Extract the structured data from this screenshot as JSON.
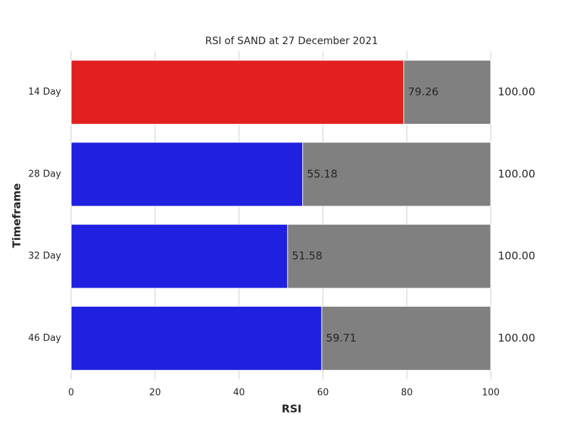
{
  "chart_data": {
    "type": "barh",
    "title": "RSI of SAND at 27 December 2021",
    "xlabel": "RSI",
    "ylabel": "Timeframe",
    "categories": [
      "14 Day",
      "28 Day",
      "32 Day",
      "46 Day"
    ],
    "series": [
      {
        "color": "#808080",
        "values": [
          100,
          100,
          100,
          100
        ],
        "value_labels": [
          "100.00",
          "100.00",
          "100.00",
          "100.00"
        ]
      },
      {
        "colors": [
          "#e32020",
          "#2020e0",
          "#2020e0",
          "#2020e0"
        ],
        "values": [
          79.26,
          55.18,
          51.58,
          59.71
        ]
      }
    ],
    "xlim": [
      0,
      100
    ],
    "xticks": [
      0,
      20,
      40,
      60,
      80,
      100
    ],
    "grid": true
  }
}
